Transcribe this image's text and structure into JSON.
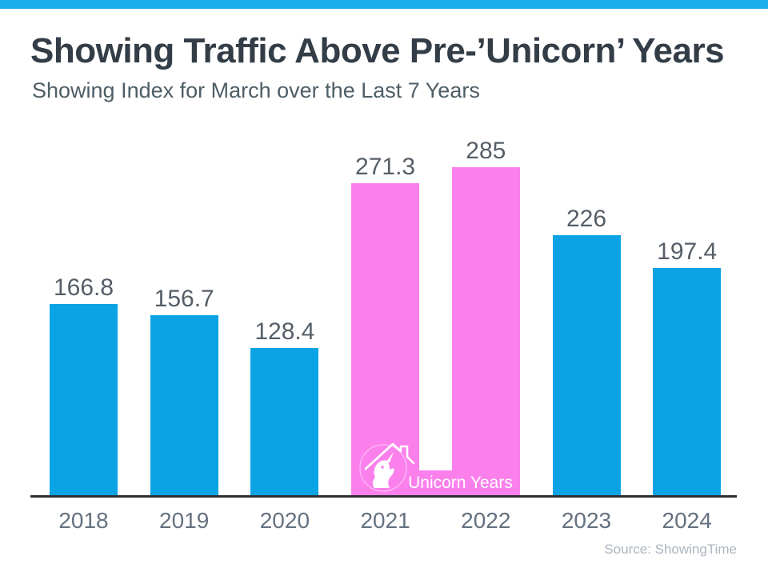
{
  "theme": {
    "background": "#FFFFFF",
    "accent_bar_color": "#1AACEC",
    "title_color": "#333D47",
    "subtitle_color": "#4E5E66",
    "value_label_color": "#555E68",
    "tick_label_color": "#64717F",
    "axis_line_color": "#2D3033",
    "source_color": "#ABB5C0"
  },
  "header": {
    "title": "Showing Traffic Above Pre-’Unicorn’ Years",
    "subtitle": "Showing Index for March over the Last 7 Years"
  },
  "chart_data": {
    "type": "bar",
    "title": "Showing Traffic Above Pre-’Unicorn’ Years",
    "subtitle": "Showing Index for March over the Last 7 Years",
    "categories": [
      "2018",
      "2019",
      "2020",
      "2021",
      "2022",
      "2023",
      "2024"
    ],
    "values": [
      166.8,
      156.7,
      128.4,
      271.3,
      285,
      226,
      197.4
    ],
    "value_labels": [
      "166.8",
      "156.7",
      "128.4",
      "271.3",
      "285",
      "226",
      "197.4"
    ],
    "bar_color": "#0BA3E3",
    "highlight": {
      "indices": [
        3,
        4
      ],
      "label": "Unicorn Years",
      "color": "#FB80EC",
      "icon": "unicorn-house-icon"
    },
    "xlabel": "",
    "ylabel": "",
    "ylim": [
      0,
      300
    ],
    "grid": false,
    "legend": "none",
    "data_labels": true
  },
  "footer": {
    "source": "Source: ShowingTime"
  }
}
